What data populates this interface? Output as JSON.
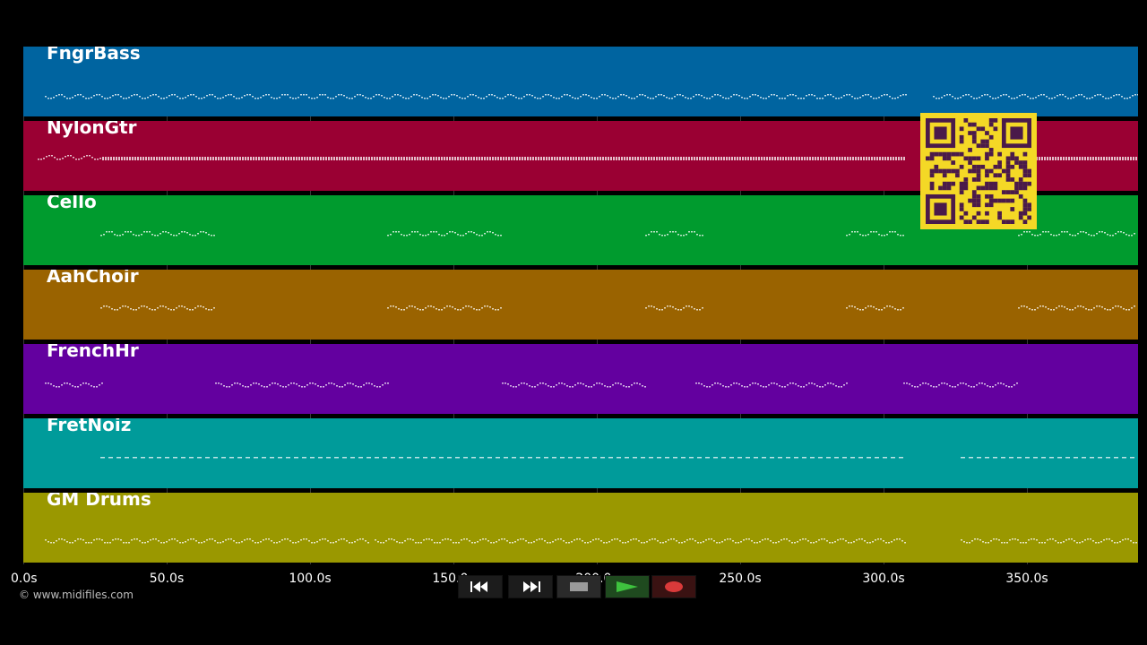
{
  "tracks": [
    {
      "name": "FngrBass",
      "color": "#0064a0"
    },
    {
      "name": "NylonGtr",
      "color": "#9a0033"
    },
    {
      "name": "Cello",
      "color": "#009b2e"
    },
    {
      "name": "AahChoir",
      "color": "#9a6300"
    },
    {
      "name": "FrenchHr",
      "color": "#63009f"
    },
    {
      "name": "FretNoiz",
      "color": "#009b9a"
    },
    {
      "name": "GM Drums",
      "color": "#9a9800"
    }
  ],
  "timeline": {
    "ticks": [
      "0.0s",
      "50.0s",
      "100.0s",
      "150.0s",
      "200.0s",
      "250.0s",
      "300.0s",
      "350.0s"
    ]
  },
  "controls": {
    "rewind_icon": "rewind-icon",
    "fast_forward_icon": "fast-forward-icon",
    "stop_icon": "stop-icon",
    "play_icon": "play-icon",
    "record_icon": "record-icon"
  },
  "qr_code_color": "#4a1a4a",
  "copyright": "© www.midifiles.com"
}
